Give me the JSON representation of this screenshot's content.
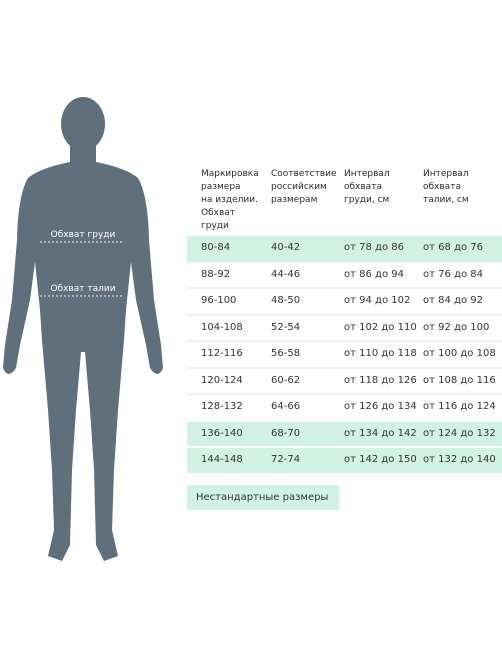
{
  "figure": {
    "chest_label": "Обхват груди",
    "waist_label": "Обхват талии"
  },
  "table": {
    "header": [
      [
        "Маркировка",
        "размера",
        "на изделии.",
        "Обхват",
        "груди"
      ],
      [
        "Соответствие",
        "российским",
        "размерам"
      ],
      [
        "Интервал",
        "обхвата",
        "груди, см"
      ],
      [
        "Интервал",
        "обхвата",
        "талии, см"
      ]
    ],
    "rows": [
      [
        "80-84",
        "40-42",
        "от 78 до 86",
        "от 68 до 76"
      ],
      [
        "88-92",
        "44-46",
        "от 86 до 94",
        "от 76 до 84"
      ],
      [
        "96-100",
        "48-50",
        "от 94 до 102",
        "от 84 до 92"
      ],
      [
        "104-108",
        "52-54",
        "от 102 до 110",
        "от 92 до 100"
      ],
      [
        "112-116",
        "56-58",
        "от 110 до 118",
        "от 100 до 108"
      ],
      [
        "120-124",
        "60-62",
        "от 118 до 126",
        "от 108 до 116"
      ],
      [
        "128-132",
        "64-66",
        "от 126 до 134",
        "от 116 до 124"
      ],
      [
        "136-140",
        "68-70",
        "от 134 до 142",
        "от 124 до 132"
      ],
      [
        "144-148",
        "72-74",
        "от 142 до 150",
        "от 132 до 140"
      ]
    ]
  },
  "button": "Нестандартные размеры"
}
